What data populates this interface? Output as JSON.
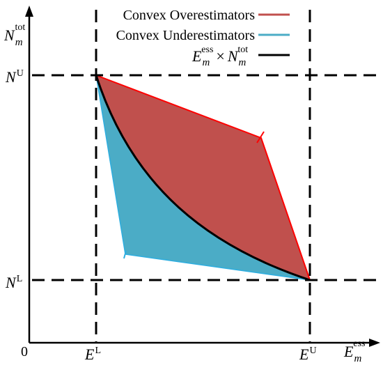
{
  "legend": {
    "overestimators_label": "Convex Overestimators",
    "underestimators_label": "Convex Underestimators",
    "product_label": {
      "e_symbol": "E",
      "e_sub": "m",
      "e_sup": "ess",
      "times": "×",
      "n_symbol": "N",
      "n_sub": "m",
      "n_sup": "tot"
    }
  },
  "axes": {
    "origin_label": "0",
    "y_axis_label": {
      "symbol": "N",
      "sub": "m",
      "sup": "tot"
    },
    "x_axis_label": {
      "symbol": "E",
      "sub": "m",
      "sup": "ess"
    },
    "x_ticks": [
      {
        "symbol": "E",
        "sup": "L"
      },
      {
        "symbol": "E",
        "sup": "U"
      }
    ],
    "y_ticks": [
      {
        "symbol": "N",
        "sup": "U"
      },
      {
        "symbol": "N",
        "sup": "L"
      }
    ]
  },
  "colors": {
    "overestimator_fill": "#c0504d",
    "overestimator_edge": "#ff0000",
    "underestimator_fill": "#4bacc6",
    "underestimator_edge": "#2eaee0",
    "product_curve": "#000000",
    "axis": "#000000",
    "bound_lines": "#000000"
  }
}
